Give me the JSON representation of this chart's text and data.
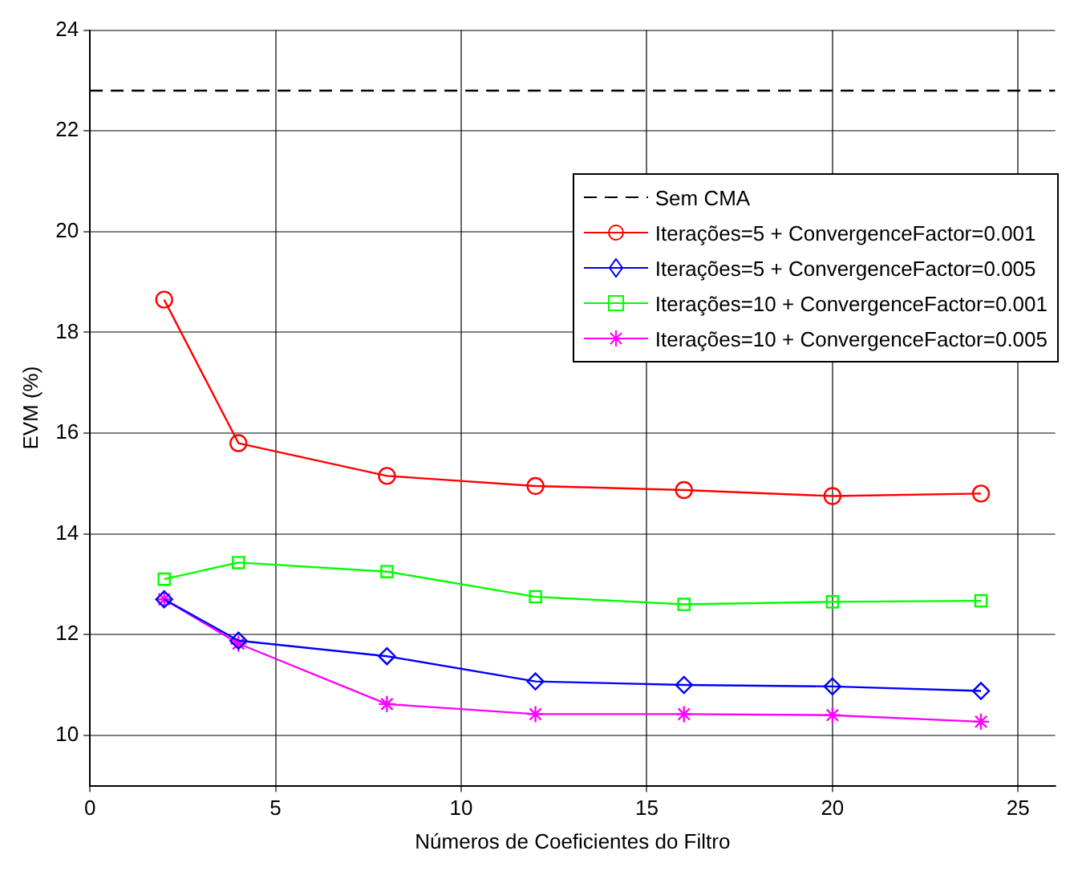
{
  "chart_data": {
    "type": "line",
    "xlabel": "Números de Coeficientes do Filtro",
    "ylabel": "EVM (%)",
    "xlim": [
      0,
      26
    ],
    "xticks": [
      0,
      5,
      10,
      15,
      20,
      25
    ],
    "ylim": [
      9,
      24
    ],
    "yticks": [
      10,
      12,
      14,
      16,
      18,
      20,
      22,
      24
    ],
    "grid": true,
    "legend": "top right",
    "x": [
      2,
      4,
      8,
      12,
      16,
      20,
      24
    ],
    "series": [
      {
        "name": "Sem CMA",
        "color": "#000000",
        "x": [
          0,
          26
        ],
        "values": [
          22.8,
          22.8
        ],
        "line_style": "dashed",
        "marker": "none"
      },
      {
        "name": "Iterações=5 + ConvergenceFactor=0.001",
        "color": "#ff0000",
        "values": [
          18.65,
          15.8,
          15.15,
          14.95,
          14.87,
          14.75,
          14.8
        ],
        "marker": "circle",
        "line_style": "solid"
      },
      {
        "name": "Iterações=5 + ConvergenceFactor=0.005",
        "color": "#0000ff",
        "values": [
          12.7,
          11.88,
          11.57,
          11.07,
          11.0,
          10.97,
          10.88
        ],
        "marker": "diamond",
        "line_style": "solid"
      },
      {
        "name": "Iterações=10 + ConvergenceFactor=0.001",
        "color": "#00ff00",
        "values": [
          13.1,
          13.43,
          13.25,
          12.75,
          12.6,
          12.65,
          12.67
        ],
        "marker": "square",
        "line_style": "solid"
      },
      {
        "name": "Iterações=10 + ConvergenceFactor=0.005",
        "color": "#ff00ff",
        "values": [
          12.7,
          11.82,
          10.62,
          10.42,
          10.42,
          10.4,
          10.27
        ],
        "marker": "cross",
        "line_style": "solid"
      }
    ]
  }
}
